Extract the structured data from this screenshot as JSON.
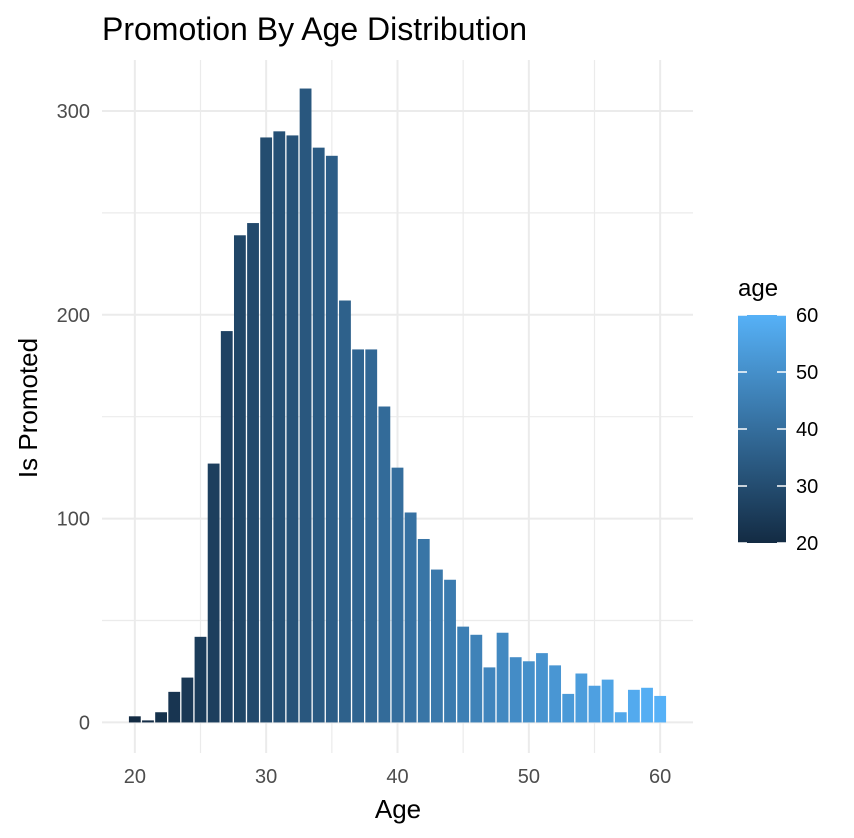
{
  "chart_data": {
    "type": "bar",
    "title": "Promotion By Age Distribution",
    "xlabel": "Age",
    "ylabel": "Is Promoted",
    "x": [
      20,
      21,
      22,
      23,
      24,
      25,
      26,
      27,
      28,
      29,
      30,
      31,
      32,
      33,
      34,
      35,
      36,
      37,
      38,
      39,
      40,
      41,
      42,
      43,
      44,
      45,
      46,
      47,
      48,
      49,
      50,
      51,
      52,
      53,
      54,
      55,
      56,
      57,
      58,
      59,
      60
    ],
    "values": [
      3,
      1,
      5,
      15,
      22,
      42,
      127,
      192,
      239,
      245,
      287,
      290,
      288,
      311,
      282,
      278,
      207,
      183,
      183,
      155,
      125,
      103,
      90,
      75,
      70,
      47,
      43,
      27,
      44,
      32,
      30,
      34,
      28,
      14,
      24,
      18,
      21,
      5,
      16,
      17,
      13
    ],
    "xlim": [
      17.5,
      62.5
    ],
    "ylim": [
      -15,
      325
    ],
    "x_ticks": [
      20,
      30,
      40,
      50,
      60
    ],
    "y_ticks": [
      0,
      100,
      200,
      300
    ],
    "grid": true,
    "legend": {
      "title": "age",
      "position": "right",
      "type": "colorbar",
      "range": [
        20,
        60
      ],
      "ticks": [
        20,
        30,
        40,
        50,
        60
      ],
      "color_low": "#132B43",
      "color_high": "#56B1F7"
    }
  }
}
